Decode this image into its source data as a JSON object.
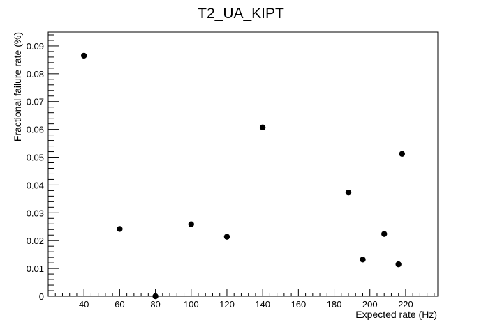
{
  "chart_data": {
    "type": "scatter",
    "title": "T2_UA_KIPT",
    "xlabel": "Expected rate (Hz)",
    "ylabel": "Fractional failure rate (%)",
    "xlim": [
      20,
      238
    ],
    "ylim": [
      0,
      0.095
    ],
    "x_ticks": [
      40,
      60,
      80,
      100,
      120,
      140,
      160,
      180,
      200,
      220
    ],
    "y_ticks": [
      0,
      0.01,
      0.02,
      0.03,
      0.04,
      0.05,
      0.06,
      0.07,
      0.08,
      0.09
    ],
    "x_tick_labels": [
      "40",
      "60",
      "80",
      "100",
      "120",
      "140",
      "160",
      "180",
      "200",
      "220"
    ],
    "y_tick_labels": [
      "0",
      "0.01",
      "0.02",
      "0.03",
      "0.04",
      "0.05",
      "0.06",
      "0.07",
      "0.08",
      "0.09"
    ],
    "grid": false,
    "marker_color": "#000000",
    "series": [
      {
        "points": [
          {
            "x": 40,
            "y": 0.0865
          },
          {
            "x": 60,
            "y": 0.0242
          },
          {
            "x": 80,
            "y": 0.0
          },
          {
            "x": 100,
            "y": 0.0259
          },
          {
            "x": 120,
            "y": 0.0214
          },
          {
            "x": 140,
            "y": 0.0607
          },
          {
            "x": 188,
            "y": 0.0373
          },
          {
            "x": 196,
            "y": 0.0132
          },
          {
            "x": 208,
            "y": 0.0224
          },
          {
            "x": 216,
            "y": 0.0115
          },
          {
            "x": 218,
            "y": 0.0512
          }
        ]
      }
    ]
  }
}
